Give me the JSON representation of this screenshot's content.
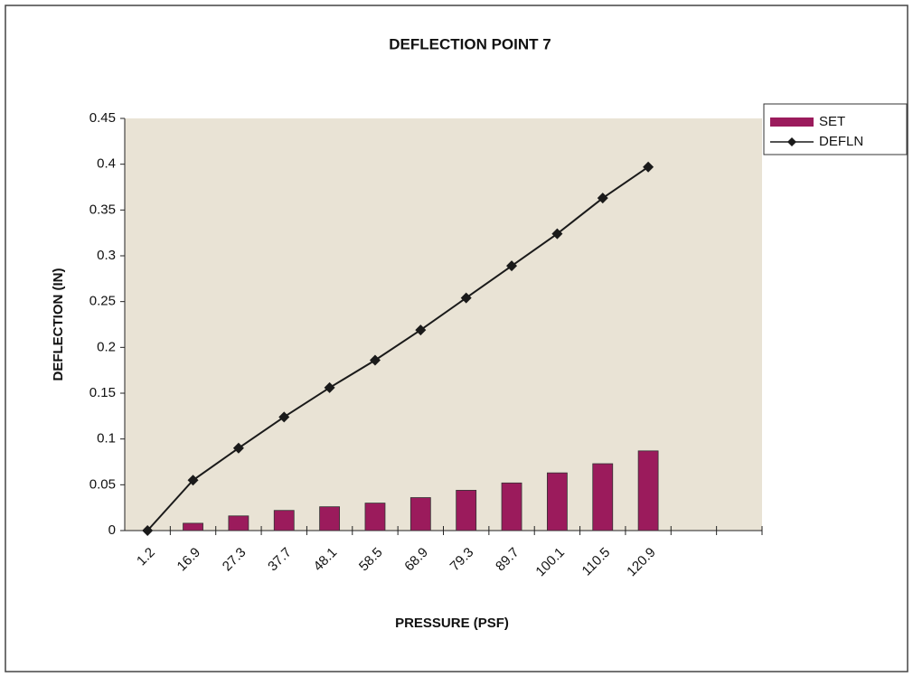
{
  "chart_data": {
    "type": "bar+line",
    "title": "DEFLECTION POINT 7",
    "x_label": "PRESSURE (PSF)",
    "y_label": "DEFLECTION (IN)",
    "categories": [
      "1.2",
      "16.9",
      "27.3",
      "37.7",
      "48.1",
      "58.5",
      "68.9",
      "79.3",
      "89.7",
      "100.1",
      "110.5",
      "120.9",
      null,
      null
    ],
    "series": [
      {
        "name": "SET",
        "type": "bar",
        "color": "#9b1b5c",
        "values": [
          0,
          0.008,
          0.016,
          0.022,
          0.026,
          0.03,
          0.036,
          0.044,
          0.052,
          0.063,
          0.073,
          0.087,
          null,
          null
        ]
      },
      {
        "name": "DEFLN",
        "type": "line",
        "color": "#1a1a1a",
        "values": [
          0,
          0.055,
          0.09,
          0.124,
          0.156,
          0.186,
          0.219,
          0.254,
          0.289,
          0.324,
          0.363,
          0.397,
          null,
          null
        ]
      }
    ],
    "ylim": [
      0,
      0.45
    ],
    "yticks": [
      0,
      0.05,
      0.1,
      0.15,
      0.2,
      0.25,
      0.3,
      0.35,
      0.4,
      0.45
    ],
    "grid": false,
    "legend": "right",
    "plot_background": "#e9e3d5"
  }
}
